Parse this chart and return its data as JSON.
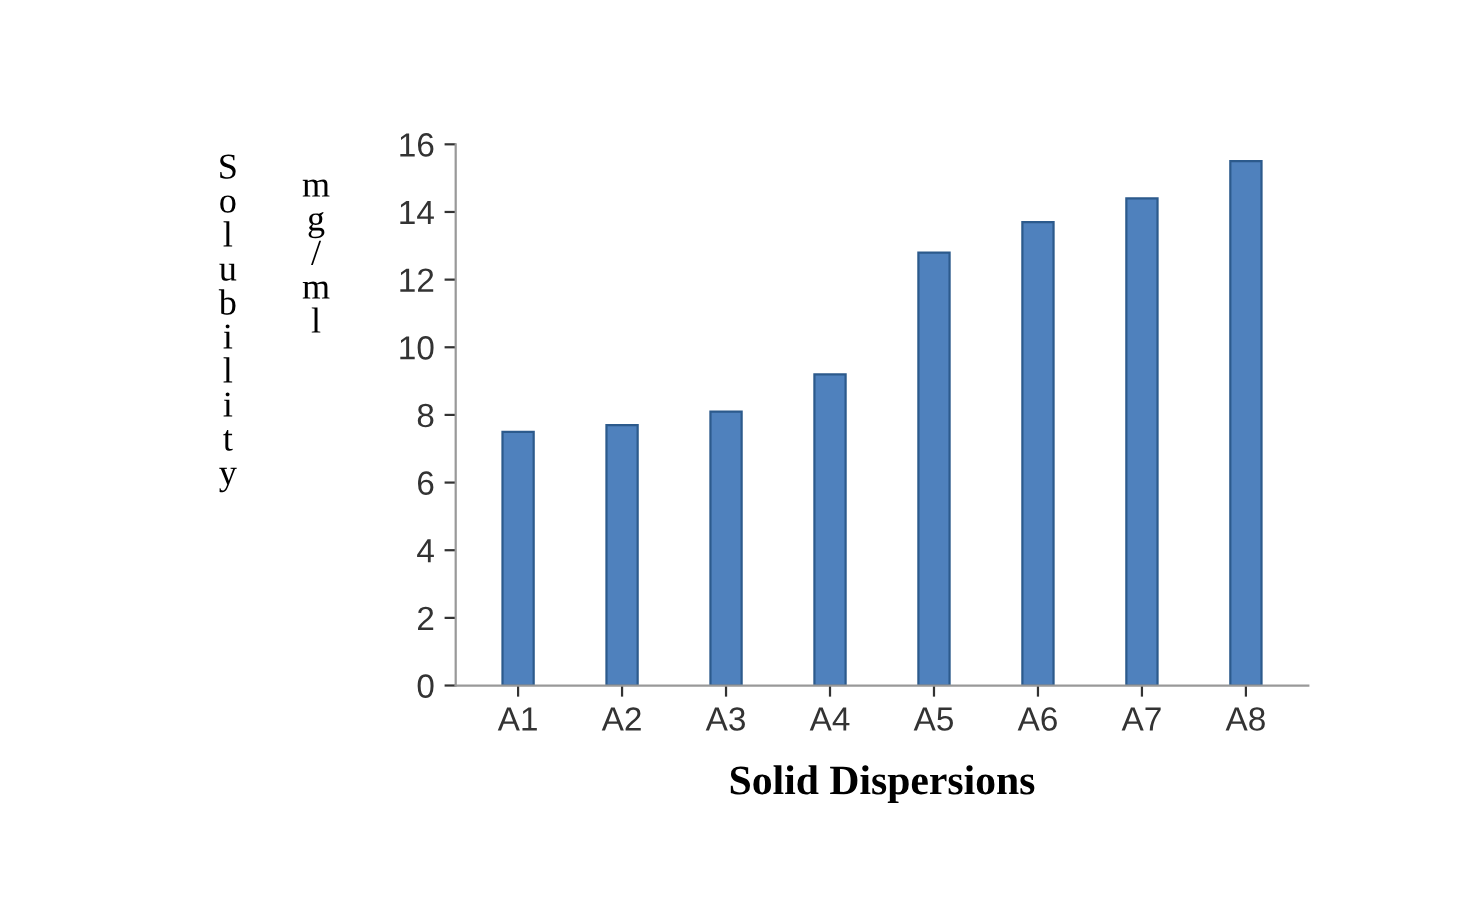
{
  "chart_data": {
    "type": "bar",
    "xlabel": "Solid Dispersions",
    "ylabel": "Solubility mg/ml",
    "categories": [
      "A1",
      "A2",
      "A3",
      "A4",
      "A5",
      "A6",
      "A7",
      "A8"
    ],
    "values": [
      7.5,
      7.7,
      8.1,
      9.2,
      12.8,
      13.7,
      14.4,
      15.5
    ],
    "color": "#4f81bd",
    "ylim": [
      0,
      16
    ],
    "yticks": [
      0,
      2,
      4,
      6,
      8,
      10,
      12,
      14,
      16
    ],
    "grid": false
  }
}
